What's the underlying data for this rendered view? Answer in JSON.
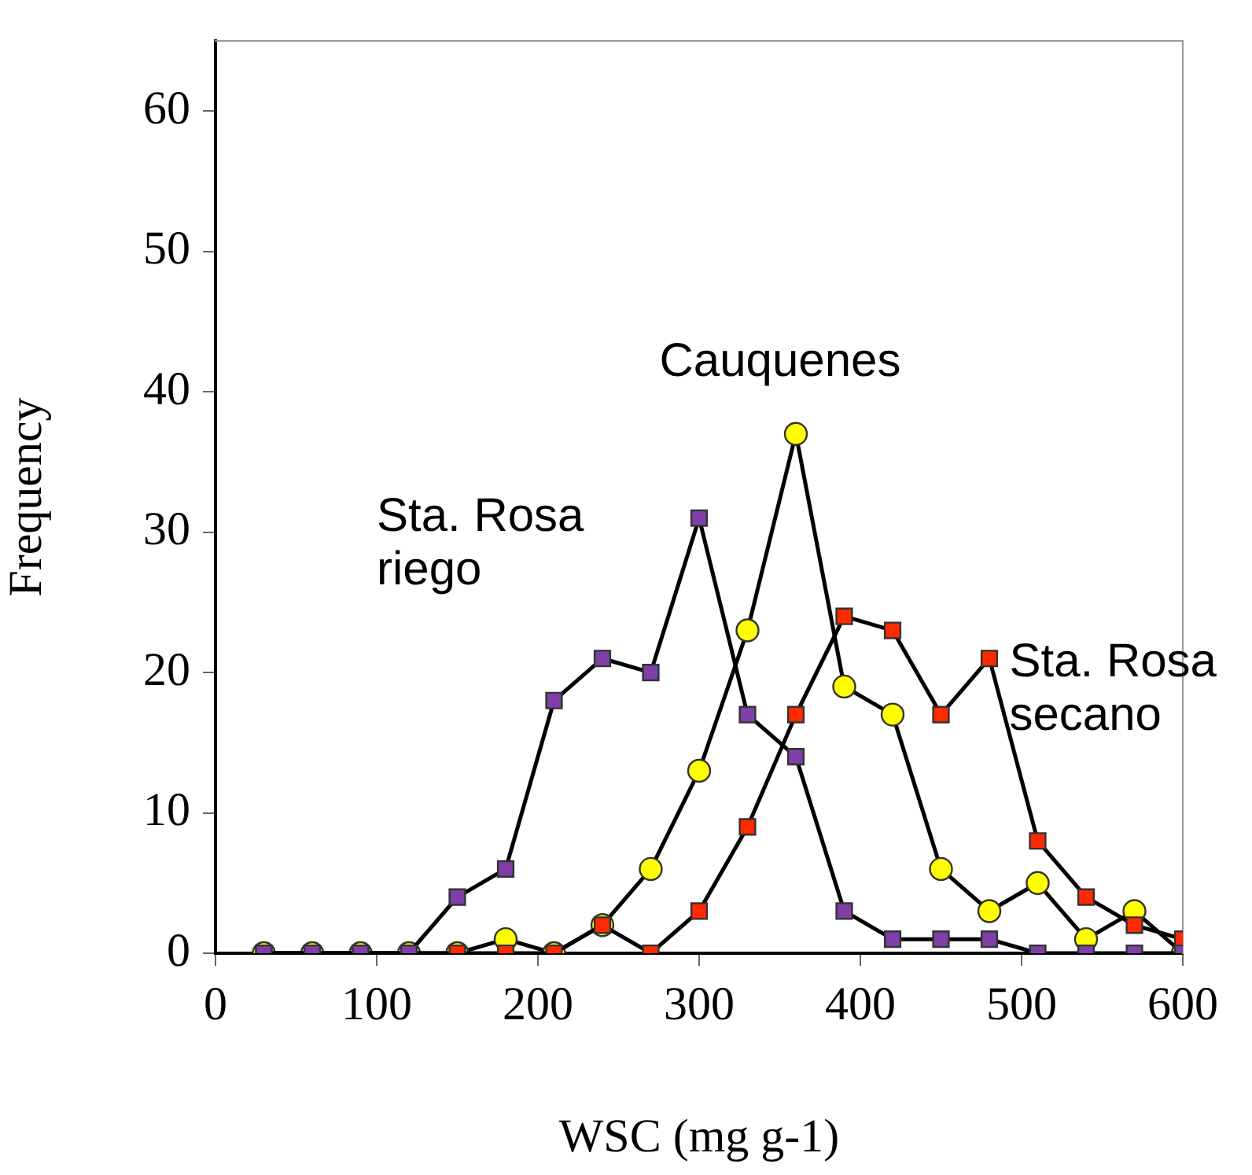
{
  "chart_data": {
    "type": "line",
    "xlabel": "WSC (mg g-1)",
    "ylabel": "Frequency",
    "x": [
      30,
      60,
      90,
      120,
      150,
      180,
      210,
      240,
      270,
      300,
      330,
      360,
      390,
      420,
      450,
      480,
      510,
      540,
      570,
      600
    ],
    "series": [
      {
        "name": "Sta. Rosa riego",
        "color": "#7f3fa6",
        "marker": "square",
        "values": [
          0,
          0,
          0,
          0,
          4,
          6,
          18,
          21,
          20,
          31,
          17,
          14,
          3,
          1,
          1,
          1,
          0,
          0,
          0,
          0
        ]
      },
      {
        "name": "Sta. Rosa secano",
        "color": "#ff2a00",
        "marker": "square",
        "values": [
          0,
          0,
          0,
          0,
          0,
          0,
          0,
          2,
          0,
          3,
          9,
          17,
          24,
          23,
          17,
          21,
          8,
          4,
          2,
          1
        ]
      },
      {
        "name": "Cauquenes",
        "color": "#ffff00",
        "marker": "circle",
        "values": [
          0,
          0,
          0,
          0,
          0,
          1,
          0,
          2,
          6,
          13,
          23,
          37,
          19,
          17,
          6,
          3,
          5,
          1,
          3,
          0
        ]
      }
    ],
    "xlim": [
      0,
      600
    ],
    "xticks": [
      0,
      100,
      200,
      300,
      400,
      500,
      600
    ],
    "ylim": [
      0,
      65
    ],
    "yticks": [
      0,
      10,
      20,
      30,
      40,
      50,
      60
    ],
    "grid": false,
    "legend": false,
    "line_style": "solid"
  }
}
